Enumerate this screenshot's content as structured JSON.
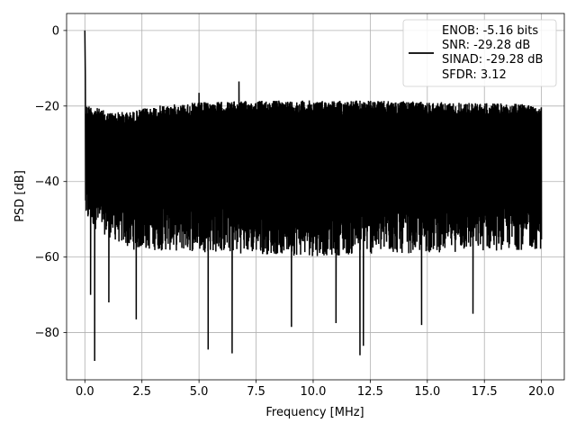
{
  "chart_data": {
    "type": "line",
    "title": "",
    "xlabel": "Frequency [MHz]",
    "ylabel": "PSD [dB]",
    "xlim": [
      -0.8,
      21.0
    ],
    "ylim": [
      -92.5,
      4.5
    ],
    "grid": true,
    "x_ticks": [
      0.0,
      2.5,
      5.0,
      7.5,
      10.0,
      12.5,
      15.0,
      17.5,
      20.0
    ],
    "x_tick_labels": [
      "0.0",
      "2.5",
      "5.0",
      "7.5",
      "10.0",
      "12.5",
      "15.0",
      "17.5",
      "20.0"
    ],
    "y_ticks": [
      0,
      -20,
      -40,
      -60,
      -80
    ],
    "y_tick_labels": [
      "0",
      "−20",
      "−40",
      "−60",
      "−80"
    ],
    "legend": {
      "placement": "upper right",
      "entries": [
        "ENOB: -5.16 bits",
        "SNR: -29.28 dB",
        "SINAD: -29.28 dB",
        "SFDR: 3.12"
      ]
    },
    "series": [
      {
        "color": "#000000",
        "x_range": [
          0.0,
          20.0
        ],
        "signal_peak": {
          "x": 0.0,
          "y": 0.0
        },
        "upper_envelope": [
          [
            0.1,
            -19.5
          ],
          [
            1.0,
            -21.5
          ],
          [
            2.0,
            -21.5
          ],
          [
            3.0,
            -20.0
          ],
          [
            5.0,
            -19.0
          ],
          [
            8.0,
            -18.5
          ],
          [
            12.0,
            -18.5
          ],
          [
            16.0,
            -19.0
          ],
          [
            20.0,
            -19.5
          ]
        ],
        "lower_envelope": [
          [
            0.1,
            -53.0
          ],
          [
            2.0,
            -60.0
          ],
          [
            10.0,
            -62.0
          ],
          [
            20.0,
            -60.0
          ]
        ],
        "notable_spikes": [
          [
            5.0,
            -16.5
          ],
          [
            6.75,
            -13.5
          ]
        ],
        "notable_dips": [
          [
            0.43,
            -87.5
          ],
          [
            0.25,
            -70.0
          ],
          [
            1.05,
            -72.0
          ],
          [
            2.25,
            -76.5
          ],
          [
            5.4,
            -84.5
          ],
          [
            6.45,
            -85.5
          ],
          [
            9.05,
            -78.5
          ],
          [
            11.0,
            -77.5
          ],
          [
            12.05,
            -86.0
          ],
          [
            12.2,
            -83.5
          ],
          [
            14.75,
            -78.0
          ],
          [
            17.0,
            -75.0
          ]
        ]
      }
    ]
  }
}
